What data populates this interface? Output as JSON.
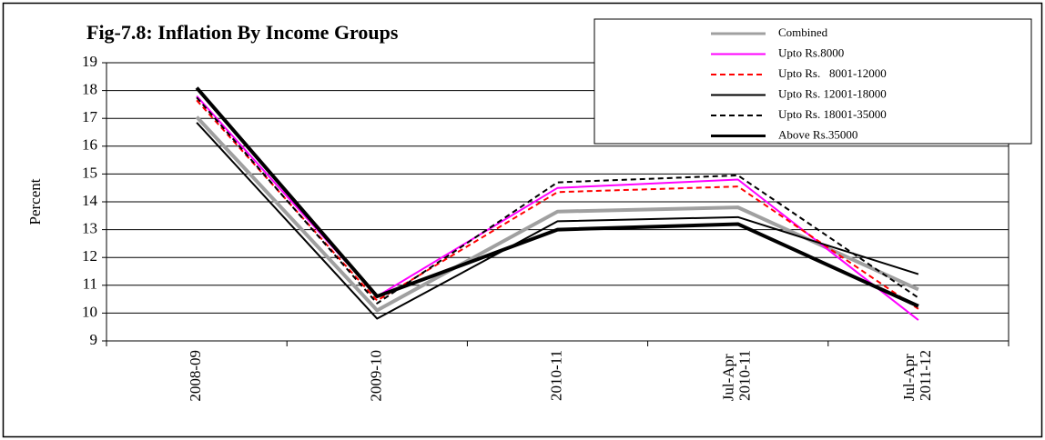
{
  "chart_data": {
    "type": "line",
    "title": "Fig-7.8: Inflation By Income Groups",
    "y_label": "Percent",
    "categories": [
      "2008-09",
      "2009-10",
      "2010-11",
      "Jul-Apr 2010-11",
      "Jul-Apr 2011-12"
    ],
    "ylim": [
      9,
      19
    ],
    "yticks": [
      9,
      10,
      11,
      12,
      13,
      14,
      15,
      16,
      17,
      18,
      19
    ],
    "grid": true,
    "legend": "upper right",
    "series": [
      {
        "name": "Combined",
        "color": "#a0a0a0",
        "style": "solid",
        "width": 4,
        "values": [
          17.05,
          10.1,
          13.65,
          13.8,
          10.85
        ]
      },
      {
        "name": "Upto Rs.8000",
        "color": "#ff00ff",
        "style": "solid",
        "width": 2,
        "values": [
          17.8,
          10.6,
          14.5,
          14.8,
          9.75
        ]
      },
      {
        "name": "Upto Rs.   8001-12000",
        "color": "#ff0000",
        "style": "dashed",
        "width": 2,
        "values": [
          17.65,
          10.45,
          14.35,
          14.55,
          10.15
        ]
      },
      {
        "name": "Upto Rs. 12001-18000",
        "color": "#000000",
        "style": "solid",
        "width": 2,
        "values": [
          16.85,
          9.8,
          13.3,
          13.45,
          11.4
        ]
      },
      {
        "name": "Upto Rs. 18001-35000",
        "color": "#000000",
        "style": "dashed",
        "width": 2,
        "values": [
          17.75,
          10.35,
          14.7,
          14.95,
          10.55
        ]
      },
      {
        "name": "Above Rs.35000",
        "color": "#000000",
        "style": "solid",
        "width": 4,
        "values": [
          18.1,
          10.6,
          13.0,
          13.2,
          10.25
        ]
      }
    ]
  }
}
